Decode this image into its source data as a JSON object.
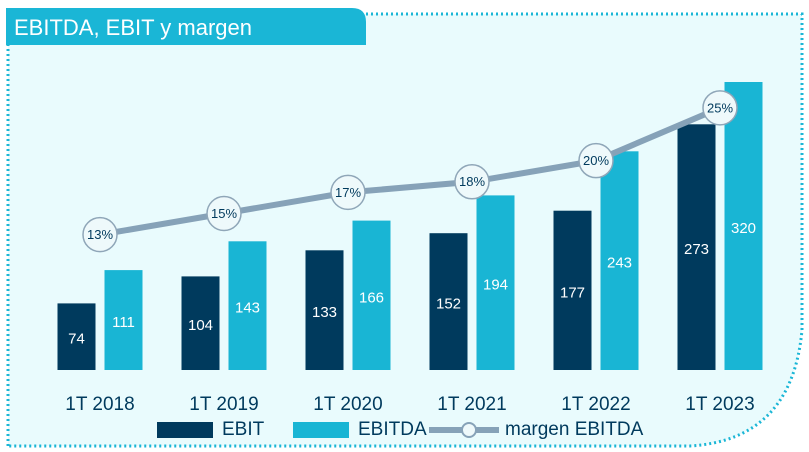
{
  "chart_data": {
    "type": "bar-line",
    "title": "EBITDA, EBIT y margen",
    "categories": [
      "1T 2018",
      "1T 2019",
      "1T 2020",
      "1T 2021",
      "1T 2022",
      "1T 2023"
    ],
    "series": [
      {
        "name": "EBIT",
        "color": "#003a5d",
        "values": [
          74,
          104,
          133,
          152,
          177,
          273
        ]
      },
      {
        "name": "EBITDA",
        "color": "#19b5d4",
        "values": [
          111,
          143,
          166,
          194,
          243,
          320
        ]
      },
      {
        "name": "margen EBITDA",
        "color": "#86a2b8",
        "axis": "y2",
        "values": [
          13,
          15,
          17,
          18,
          20,
          25
        ],
        "value_labels": [
          "13%",
          "15%",
          "17%",
          "18%",
          "20%",
          "25%"
        ]
      }
    ],
    "ylim": [
      0,
      350
    ],
    "y2lim": [
      0,
      30
    ]
  }
}
